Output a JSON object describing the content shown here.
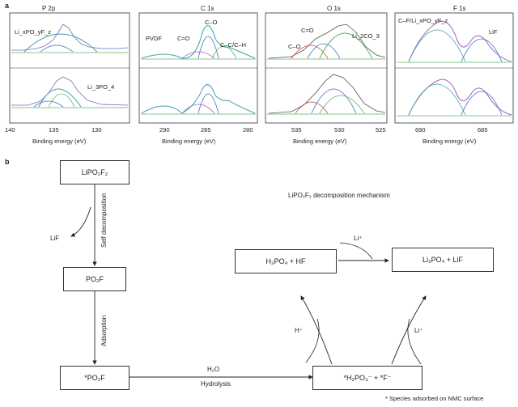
{
  "panel_a": {
    "label": "a",
    "xlabel": "Binding energy (eV)",
    "spectra": [
      {
        "title": "P 2p",
        "ticks": [
          "140",
          "135",
          "130"
        ],
        "top_label": "Li_xPO_yF_z",
        "bottom_label": "Li_3PO_4"
      },
      {
        "title": "C 1s",
        "ticks": [
          "290",
          "285",
          "280"
        ],
        "top_labels": [
          "PVDF",
          "C=O",
          "C–O",
          "C–C/C–H"
        ]
      },
      {
        "title": "O 1s",
        "ticks": [
          "535",
          "530",
          "525"
        ],
        "top_labels": [
          "C=O",
          "C–O",
          "Li_2CO_3"
        ]
      },
      {
        "title": "F 1s",
        "ticks": [
          "690",
          "685"
        ],
        "top_labels": [
          "C–F/Li_xPO_yF_z",
          "LiF"
        ]
      }
    ]
  },
  "panel_b": {
    "label": "b",
    "boxes": {
      "lipo2f2": "LiPO₂F₂",
      "po2f": "PO₂F",
      "po2f_ads": "*PO₂F",
      "h3po4": "H₃PO₄ + HF",
      "li3po4": "Li₃PO₄ + LiF",
      "h2po3": "*H₂PO₃⁻ + *F⁻"
    },
    "labels": {
      "self_decomposition": "Self decomposition",
      "lif": "LiF",
      "adsorption": "Adsorption",
      "h2o": "H₂O",
      "hydrolysis": "Hydrolysis",
      "mechanism_title": "LiPO₂F₂ decomposition mechanism",
      "li_plus_top": "Li⁺",
      "h_plus": "H⁺",
      "li_plus_right": "Li⁺",
      "footnote": "* Species adsorbed on NMC surface"
    }
  }
}
